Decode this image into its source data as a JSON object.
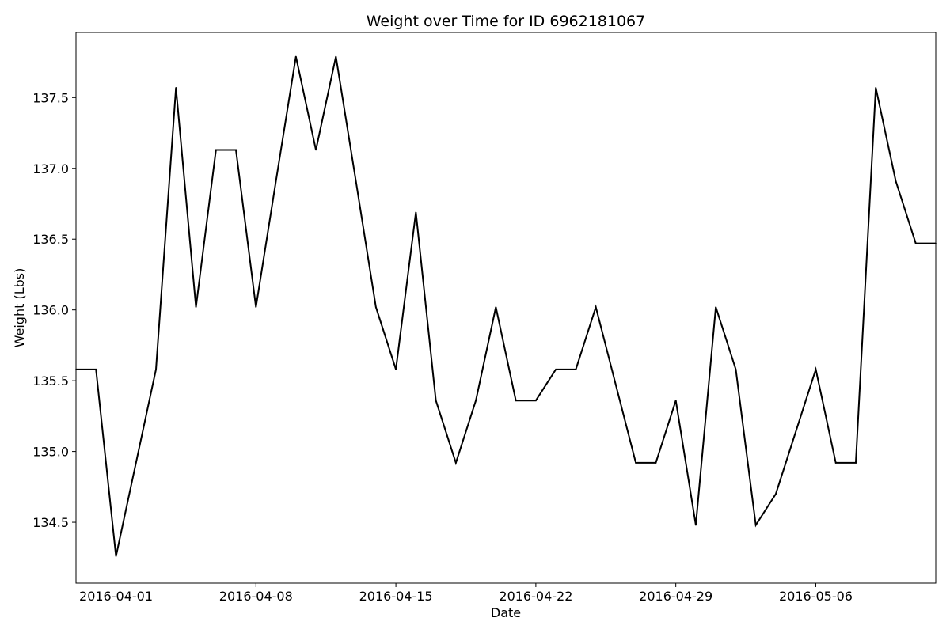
{
  "chart_data": {
    "type": "line",
    "title": "Weight over Time for ID 6962181067",
    "xlabel": "Date",
    "ylabel": "Weight (Lbs)",
    "x_tick_labels": [
      "2016-04-01",
      "2016-04-08",
      "2016-04-15",
      "2016-04-22",
      "2016-04-29",
      "2016-05-06"
    ],
    "y_tick_labels": [
      "134.5",
      "135.0",
      "135.5",
      "136.0",
      "136.5",
      "137.0",
      "137.5"
    ],
    "xlim": [
      "2016-03-30",
      "2016-05-12"
    ],
    "ylim": [
      134.07,
      137.96
    ],
    "grid": false,
    "series": [
      {
        "color": "#000000",
        "x": [
          "2016-03-30",
          "2016-03-31",
          "2016-04-01",
          "2016-04-02",
          "2016-04-03",
          "2016-04-04",
          "2016-04-05",
          "2016-04-06",
          "2016-04-07",
          "2016-04-08",
          "2016-04-09",
          "2016-04-10",
          "2016-04-11",
          "2016-04-12",
          "2016-04-13",
          "2016-04-14",
          "2016-04-15",
          "2016-04-16",
          "2016-04-17",
          "2016-04-18",
          "2016-04-19",
          "2016-04-20",
          "2016-04-21",
          "2016-04-22",
          "2016-04-23",
          "2016-04-24",
          "2016-04-25",
          "2016-04-26",
          "2016-04-27",
          "2016-04-28",
          "2016-04-29",
          "2016-04-30",
          "2016-05-01",
          "2016-05-02",
          "2016-05-03",
          "2016-05-04",
          "2016-05-05",
          "2016-05-06",
          "2016-05-07",
          "2016-05-08",
          "2016-05-09",
          "2016-05-10",
          "2016-05-11",
          "2016-05-12"
        ],
        "values": [
          135.58,
          135.58,
          134.26,
          134.92,
          135.58,
          137.57,
          136.02,
          137.13,
          137.13,
          136.02,
          136.91,
          137.79,
          137.13,
          137.79,
          136.91,
          136.02,
          135.58,
          136.69,
          135.36,
          134.92,
          135.36,
          136.02,
          135.36,
          135.36,
          135.58,
          135.58,
          136.02,
          135.47,
          134.92,
          134.92,
          135.36,
          134.48,
          136.02,
          135.58,
          134.48,
          134.7,
          135.14,
          135.58,
          134.92,
          134.92,
          137.57,
          136.91,
          136.47,
          136.47
        ]
      }
    ]
  }
}
